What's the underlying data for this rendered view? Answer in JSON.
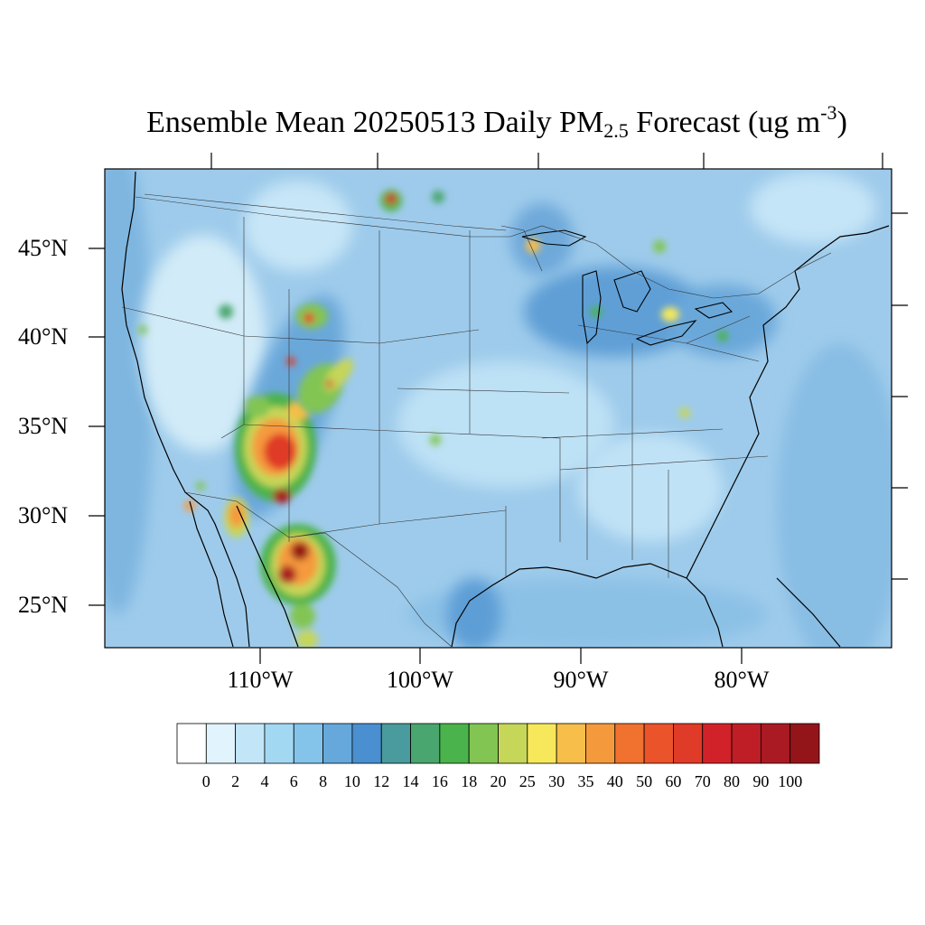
{
  "title": {
    "prefix": "Ensemble Mean 20250513 Daily PM",
    "subscript": "2.5",
    "middle": " Forecast (ug m",
    "superscript": "-3",
    "suffix": ")"
  },
  "axes": {
    "lat_labels": [
      "45°N",
      "40°N",
      "35°N",
      "30°N",
      "25°N"
    ],
    "lon_labels": [
      "110°W",
      "100°W",
      "90°W",
      "80°W"
    ]
  },
  "colorbar": {
    "labels": [
      "0",
      "2",
      "4",
      "6",
      "8",
      "10",
      "12",
      "14",
      "16",
      "18",
      "20",
      "25",
      "30",
      "35",
      "40",
      "50",
      "60",
      "70",
      "80",
      "90",
      "100"
    ],
    "colors": [
      "#ffffff",
      "#e1f3fc",
      "#c2e6f8",
      "#a3d8f3",
      "#85c4ea",
      "#66a8db",
      "#4a8fcf",
      "#4a9b9d",
      "#49a66e",
      "#4bb34b",
      "#82c552",
      "#c6d659",
      "#f6e85a",
      "#f7be4a",
      "#f59a3c",
      "#f1712e",
      "#eb532a",
      "#e03a28",
      "#d12229",
      "#bf1e26",
      "#aa1a22",
      "#941519"
    ]
  },
  "map": {
    "background_color": "#9ecbeb",
    "hotspots": [
      {
        "name": "idaho-montana-smoke",
        "lat": 47.8,
        "lon": -102.1,
        "level": "high"
      },
      {
        "name": "montana-north-spot",
        "lat": 47.6,
        "lon": -98.9,
        "level": "mid"
      },
      {
        "name": "minnesota-spot",
        "lat": 45.2,
        "lon": -92.8,
        "level": "mid-high"
      },
      {
        "name": "upper-michigan-spot",
        "lat": 45.6,
        "lon": -85.1,
        "level": "mid"
      },
      {
        "name": "michigan-detroit-spot",
        "lat": 41.3,
        "lon": -84.6,
        "level": "mid-high"
      },
      {
        "name": "wyoming-spot",
        "lat": 41.2,
        "lon": -107.3,
        "level": "high"
      },
      {
        "name": "utah-spot-west",
        "lat": 41.5,
        "lon": -112.8,
        "level": "mid"
      },
      {
        "name": "colorado-spot",
        "lat": 36.3,
        "lon": -107.1,
        "level": "high"
      },
      {
        "name": "new-mexico-cluster",
        "lat": 33.8,
        "lon": -108.0,
        "level": "very-high"
      },
      {
        "name": "arizona-spot",
        "lat": 30.2,
        "lon": -112.0,
        "level": "high"
      },
      {
        "name": "chihuahua-cluster",
        "lat": 27.5,
        "lon": -108.0,
        "level": "very-high"
      },
      {
        "name": "oklahoma-spot",
        "lat": 34.3,
        "lon": -99.1,
        "level": "mid"
      },
      {
        "name": "kentucky-spot",
        "lat": 35.8,
        "lon": -83.3,
        "level": "mid"
      }
    ]
  }
}
